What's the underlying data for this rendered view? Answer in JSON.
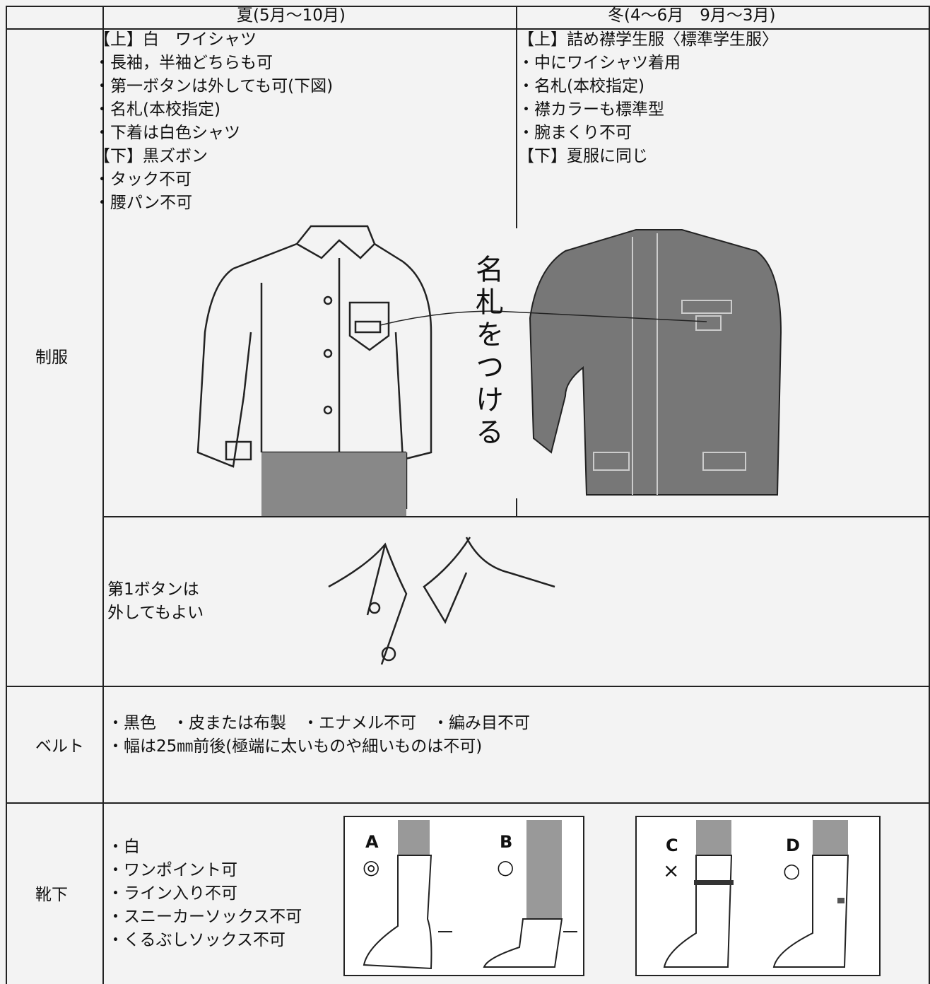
{
  "header": {
    "summer": "夏(5月～10月)",
    "winter": "冬(4～6月　9月～3月)"
  },
  "uniform": {
    "label": "制服",
    "summer": [
      "【上】白　ワイシャツ",
      "・長袖，半袖どちらも可",
      "・第一ボタンは外しても可(下図)",
      "・名札(本校指定)",
      "・下着は白色シャツ",
      "【下】黒ズボン",
      "・タック不可",
      "・腰パン不可"
    ],
    "winter": [
      "【上】詰め襟学生服〈標準学生服〉",
      "・中にワイシャツ着用",
      "・名札(本校指定)",
      "・襟カラーも標準型",
      "・腕まくり不可",
      "【下】夏服に同じ"
    ],
    "name_tag_note": "名札をつける",
    "button_note": [
      "第1ボタンは",
      "外してもよい"
    ]
  },
  "belt": {
    "label": "ベルト",
    "lines": [
      "・黒色　・皮または布製　・エナメル不可　・編み目不可",
      "・幅は25㎜前後(極端に太いものや細いものは不可)"
    ]
  },
  "socks": {
    "label": "靴下",
    "lines": [
      "・白",
      "・ワンポイント可",
      "・ライン入り不可",
      "・スニーカーソックス不可",
      "・くるぶしソックス不可"
    ],
    "figures": [
      {
        "letter": "A",
        "mark": "◎"
      },
      {
        "letter": "B",
        "mark": "○"
      },
      {
        "letter": "C",
        "mark": "×"
      },
      {
        "letter": "D",
        "mark": "○"
      }
    ]
  }
}
